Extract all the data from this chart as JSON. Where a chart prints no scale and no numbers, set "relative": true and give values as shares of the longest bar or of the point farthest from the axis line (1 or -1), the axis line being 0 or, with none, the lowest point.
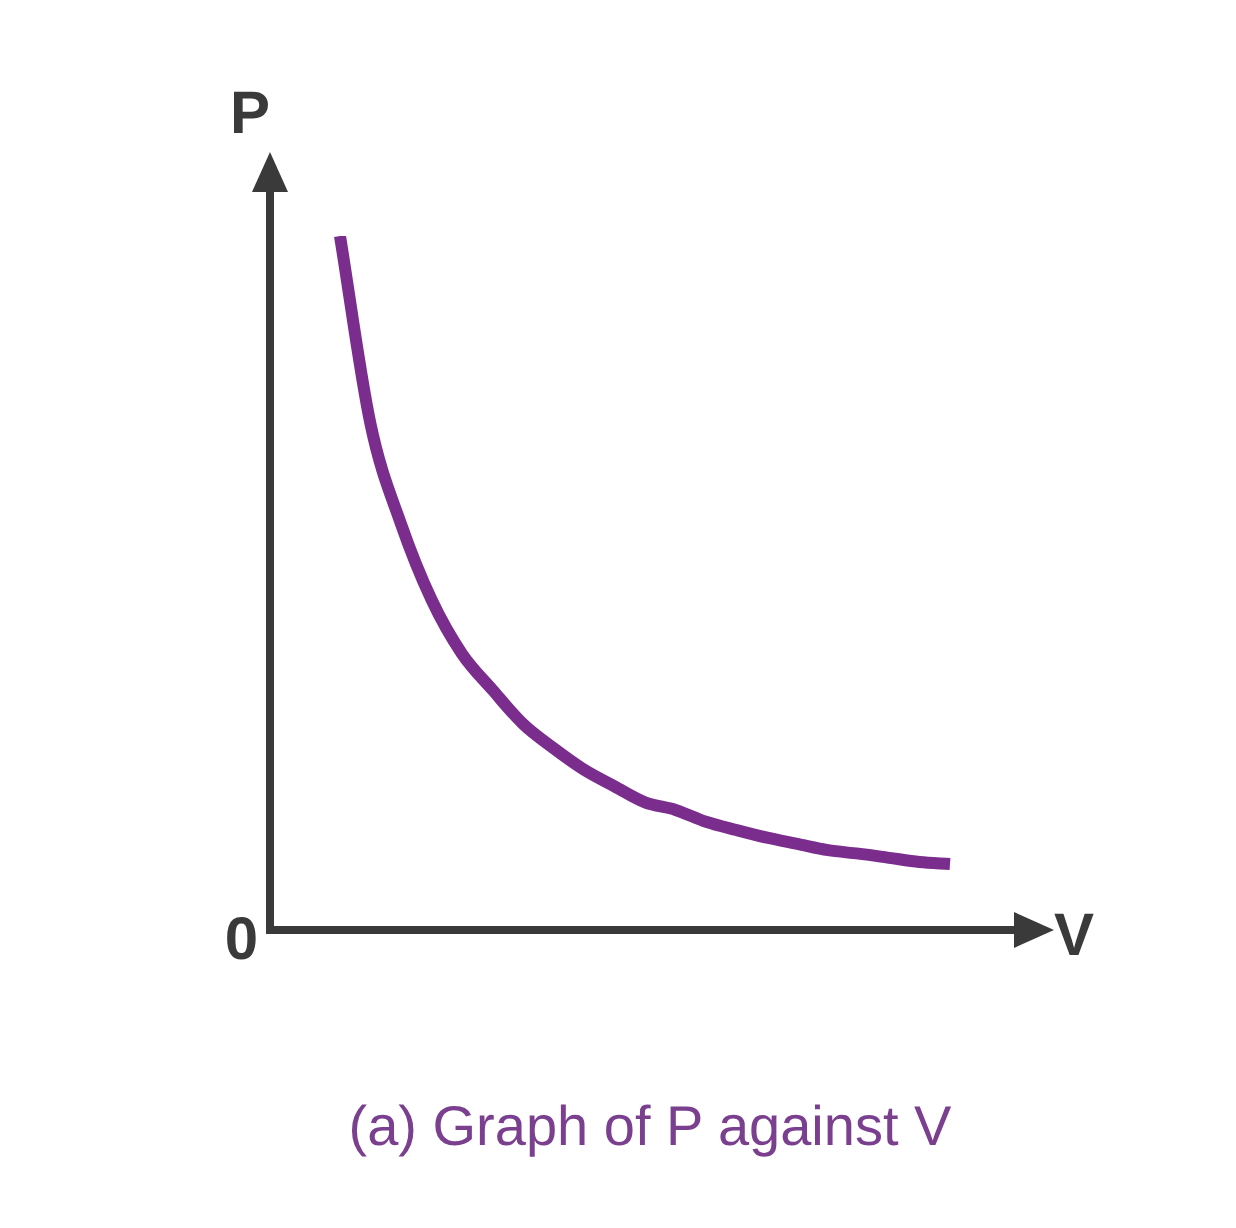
{
  "chart_data": {
    "type": "line",
    "relative": true,
    "title": "(a) Graph of P against V",
    "xlabel": "V",
    "ylabel": "P",
    "annotations": [
      "0"
    ],
    "categories": [
      null,
      null,
      null,
      null,
      null,
      null,
      null,
      null,
      null,
      null,
      null,
      null,
      null,
      null,
      null,
      null,
      null,
      null,
      null,
      null,
      null
    ],
    "series": [
      {
        "color": "#7b2d8e",
        "values": [
          1,
          0.729,
          0.585,
          0.476,
          0.398,
          0.346,
          0.297,
          0.262,
          0.231,
          0.207,
          0.184,
          0.173,
          0.156,
          0.144,
          0.133,
          0.124,
          0.115,
          0.11,
          0.104,
          0.098,
          0.095
        ]
      }
    ],
    "legend": false,
    "marker": "none",
    "line_style": "solid"
  }
}
